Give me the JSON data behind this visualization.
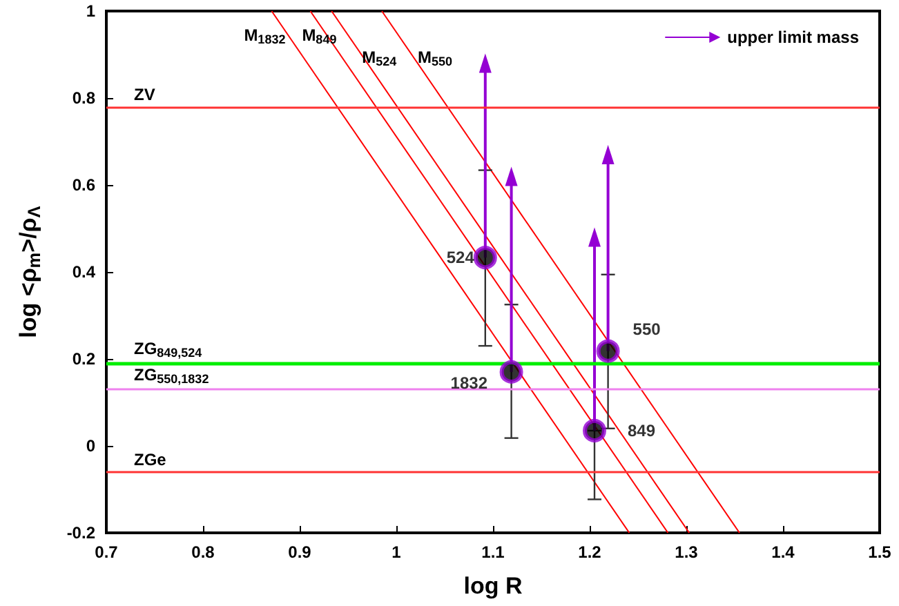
{
  "chart_data": {
    "type": "scatter",
    "xlabel": "log R",
    "ylabel": "log <ρ$_{m}$>/ρ$_{Λ}$",
    "xlim": [
      0.7,
      1.5
    ],
    "xticks": [
      0.7,
      0.8,
      0.9,
      1,
      1.1,
      1.2,
      1.3,
      1.4,
      1.5
    ],
    "ylim": [
      -0.2,
      1
    ],
    "yticks": [
      -0.2,
      0,
      0.2,
      0.4,
      0.6,
      0.8,
      1
    ],
    "grid": false,
    "legend": "top right",
    "series": [
      {
        "color": "#000000",
        "marker": "circle",
        "x": [
          1.092,
          1.119,
          1.205,
          1.219
        ],
        "values": [
          0.433,
          0.17,
          0.035,
          0.218
        ],
        "errors": [
          [
            0.23,
            0.634
          ],
          [
            0.018,
            0.325
          ],
          [
            -0.123,
            0.035
          ],
          [
            0.04,
            0.394
          ]
        ]
      },
      {
        "type": "line",
        "name": "upper limit mass",
        "color": "#9400d3",
        "marker": "triangle",
        "x": [
          1.092,
          1.092,
          1.105,
          1.119,
          1.119,
          1.16,
          1.205,
          1.205,
          1.212,
          1.219,
          1.219
        ],
        "values": [
          0.433,
          0.88,
          null,
          0.17,
          0.62,
          null,
          0.035,
          0.48,
          null,
          0.218,
          0.67
        ]
      },
      {
        "type": "line",
        "marker": "none",
        "name": "M$_{1832}$",
        "color": "#ff0000",
        "x": [
          0.871,
          1.241
        ],
        "values": [
          1,
          -0.2
        ]
      },
      {
        "type": "line",
        "marker": "none",
        "name": "M$_{849}$",
        "color": "#ff0000",
        "x": [
          0.911,
          1.281
        ],
        "values": [
          1,
          -0.2
        ]
      },
      {
        "type": "line",
        "marker": "none",
        "name": "M$_{524}$",
        "color": "#ff0000",
        "x": [
          0.933,
          1.303
        ],
        "values": [
          1,
          -0.2
        ]
      },
      {
        "type": "line",
        "marker": "none",
        "name": "M$_{550}$",
        "color": "#ff0000",
        "x": [
          0.985,
          1.355
        ],
        "values": [
          1,
          -0.2
        ]
      }
    ],
    "ref_lines": [
      {
        "axis": "y",
        "value": 0.78,
        "label": "ZV",
        "color": "#ff3333"
      },
      {
        "axis": "y",
        "value": 0.19,
        "label": "ZG$_{849,524}$",
        "color": "#00ee00"
      },
      {
        "axis": "y",
        "value": 0.13,
        "label": "ZG$_{550,1832}$",
        "color": "#ee82ee"
      },
      {
        "axis": "y",
        "value": -0.06,
        "label": "ZGe",
        "color": "#ff3333"
      }
    ],
    "annotations": [
      {
        "text": "524",
        "x": 1.092,
        "y": 0.433
      },
      {
        "text": "1832",
        "x": 1.119,
        "y": 0.17
      },
      {
        "text": "849",
        "x": 1.205,
        "y": 0.035
      },
      {
        "text": "550",
        "x": 1.219,
        "y": 0.218
      }
    ]
  }
}
